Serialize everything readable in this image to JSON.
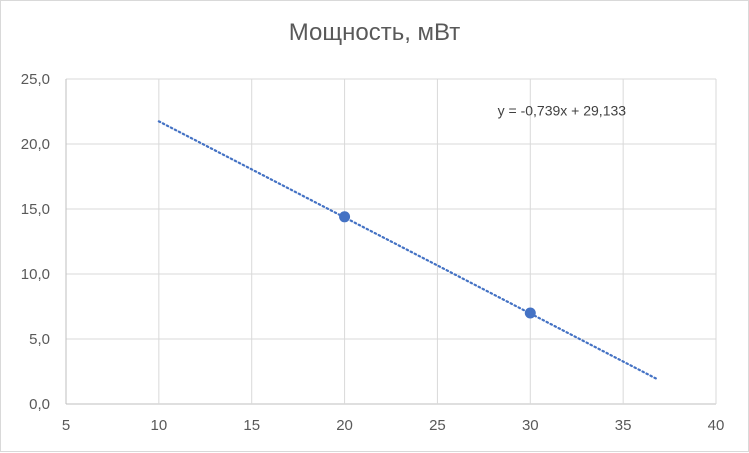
{
  "chart_data": {
    "type": "scatter",
    "title": "Мощность, мВт",
    "xlabel": "",
    "ylabel": "",
    "xlim": [
      5,
      40
    ],
    "ylim": [
      0,
      25
    ],
    "x_ticks": [
      5,
      10,
      15,
      20,
      25,
      30,
      35,
      40
    ],
    "x_tick_labels": [
      "5",
      "10",
      "15",
      "20",
      "25",
      "30",
      "35",
      "40"
    ],
    "y_ticks": [
      0,
      5,
      10,
      15,
      20,
      25
    ],
    "y_tick_labels": [
      "0,0",
      "5,0",
      "10,0",
      "15,0",
      "20,0",
      "25,0"
    ],
    "grid": true,
    "legend": "none",
    "series": [
      {
        "x": [
          20,
          30
        ],
        "y": [
          14.4,
          7.0
        ],
        "color": "#4472c4",
        "marker": "circle"
      }
    ],
    "trendline": {
      "type": "linear",
      "slope": -0.739,
      "intercept": 29.133,
      "x_range": [
        10,
        36.8
      ],
      "style": "dotted",
      "color": "#4472c4",
      "label": "y = -0,739x + 29,133",
      "label_position": {
        "x": 31.7,
        "y": 22.2
      }
    }
  }
}
